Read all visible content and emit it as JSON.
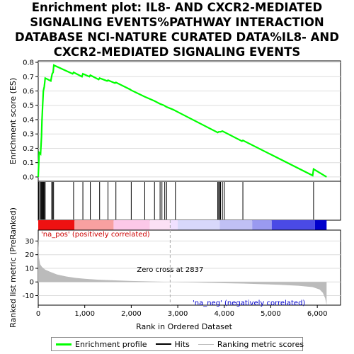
{
  "title_lines": [
    "Enrichment plot: IL8- AND CXCR2-MEDIATED",
    "SIGNALING EVENTS%PATHWAY INTERACTION",
    "DATABASE NCI-NATURE CURATED DATA%IL8- AND",
    "CXCR2-MEDIATED SIGNALING EVENTS"
  ],
  "legend": {
    "items": [
      {
        "label": "Enrichment profile",
        "color": "#00ff00"
      },
      {
        "label": "Hits",
        "color": "#000000"
      },
      {
        "label": "Ranking metric scores",
        "color": "#bbbbbb"
      }
    ]
  },
  "colors": {
    "es_line": "#00ff00",
    "hits": "#000000",
    "metric_fill": "#bbbbbb",
    "pos_text": "#cc0000",
    "neg_text": "#0000cc",
    "zero_line": "#aaaaaa"
  },
  "annotations": {
    "pos_label": "'na_pos' (positively correlated)",
    "neg_label": "'na_neg' (negatively correlated)",
    "zero_cross": "Zero cross at 2837"
  },
  "chart_data": {
    "type": "line",
    "xlabel": "Rank in Ordered Dataset",
    "x_range": [
      0,
      6500
    ],
    "x_ticks": [
      0,
      1000,
      2000,
      3000,
      4000,
      5000,
      6000
    ],
    "x_tick_labels": [
      "0",
      "1,000",
      "2,000",
      "3,000",
      "4,000",
      "5,000",
      "6,000"
    ],
    "total_genes": 6200,
    "zero_cross": 2837,
    "es_panel": {
      "ylabel": "Enrichment score (ES)",
      "ylim": [
        -0.03,
        0.81
      ],
      "y_ticks": [
        0.0,
        0.1,
        0.2,
        0.3,
        0.4,
        0.5,
        0.6,
        0.7,
        0.8
      ],
      "y_tick_labels": [
        "0.0",
        "0.1",
        "0.2",
        "0.3",
        "0.4",
        "0.5",
        "0.6",
        "0.7",
        "0.8"
      ],
      "points": [
        [
          0,
          0.0
        ],
        [
          20,
          0.17
        ],
        [
          50,
          0.16
        ],
        [
          70,
          0.28
        ],
        [
          80,
          0.39
        ],
        [
          95,
          0.5
        ],
        [
          110,
          0.6
        ],
        [
          130,
          0.63
        ],
        [
          150,
          0.69
        ],
        [
          270,
          0.67
        ],
        [
          300,
          0.72
        ],
        [
          320,
          0.73
        ],
        [
          335,
          0.78
        ],
        [
          740,
          0.72
        ],
        [
          760,
          0.73
        ],
        [
          940,
          0.7
        ],
        [
          960,
          0.72
        ],
        [
          1100,
          0.7
        ],
        [
          1120,
          0.71
        ],
        [
          1300,
          0.68
        ],
        [
          1320,
          0.69
        ],
        [
          1480,
          0.67
        ],
        [
          1500,
          0.675
        ],
        [
          1650,
          0.655
        ],
        [
          1670,
          0.66
        ],
        [
          1980,
          0.61
        ],
        [
          2000,
          0.605
        ],
        [
          2290,
          0.56
        ],
        [
          2500,
          0.53
        ],
        [
          2620,
          0.51
        ],
        [
          2700,
          0.5
        ],
        [
          2750,
          0.49
        ],
        [
          2900,
          0.47
        ],
        [
          3860,
          0.31
        ],
        [
          3880,
          0.315
        ],
        [
          3920,
          0.315
        ],
        [
          3960,
          0.32
        ],
        [
          4380,
          0.25
        ],
        [
          4400,
          0.255
        ],
        [
          5900,
          0.01
        ],
        [
          5920,
          0.055
        ],
        [
          6200,
          0.0
        ]
      ]
    },
    "hits": [
      8,
      30,
      55,
      70,
      85,
      100,
      115,
      130,
      150,
      290,
      310,
      330,
      760,
      960,
      1120,
      1320,
      1500,
      1670,
      2000,
      2290,
      2500,
      2620,
      2660,
      2720,
      2760,
      2950,
      3860,
      3880,
      3900,
      3920,
      3960,
      4000,
      4400,
      5920
    ],
    "metric_panel": {
      "ylabel": "Ranked list metric (PreRanked)",
      "ylim": [
        -17,
        38
      ],
      "y_ticks": [
        -10,
        0,
        10,
        20,
        30
      ],
      "y_tick_labels": [
        "-10",
        "0",
        "10",
        "20",
        "30"
      ],
      "points": [
        [
          0,
          32
        ],
        [
          15,
          18
        ],
        [
          40,
          13
        ],
        [
          80,
          11
        ],
        [
          150,
          9
        ],
        [
          250,
          7.5
        ],
        [
          400,
          5.5
        ],
        [
          600,
          4
        ],
        [
          800,
          3
        ],
        [
          1000,
          2.3
        ],
        [
          1300,
          1.6
        ],
        [
          1600,
          1.2
        ],
        [
          2000,
          0.7
        ],
        [
          2400,
          0.35
        ],
        [
          2837,
          0
        ],
        [
          3200,
          -0.3
        ],
        [
          3600,
          -0.6
        ],
        [
          4000,
          -0.9
        ],
        [
          4400,
          -1.2
        ],
        [
          4800,
          -1.6
        ],
        [
          5200,
          -2.1
        ],
        [
          5600,
          -2.8
        ],
        [
          5900,
          -3.8
        ],
        [
          6050,
          -5.5
        ],
        [
          6120,
          -8
        ],
        [
          6170,
          -12
        ],
        [
          6200,
          -17
        ]
      ]
    },
    "rank_bar_colors": [
      {
        "start": 0,
        "end": 780,
        "color": "#ee1111"
      },
      {
        "start": 780,
        "end": 1620,
        "color": "#f8a0a0"
      },
      {
        "start": 1620,
        "end": 2400,
        "color": "#fcc8e8"
      },
      {
        "start": 2400,
        "end": 2837,
        "color": "#fbe0f4"
      },
      {
        "start": 2837,
        "end": 3000,
        "color": "#f0e0ff"
      },
      {
        "start": 3000,
        "end": 3900,
        "color": "#d8d8fa"
      },
      {
        "start": 3900,
        "end": 4600,
        "color": "#c0c0f4"
      },
      {
        "start": 4600,
        "end": 5020,
        "color": "#9a9af0"
      },
      {
        "start": 5020,
        "end": 5950,
        "color": "#4a4ae6"
      },
      {
        "start": 5950,
        "end": 6200,
        "color": "#0000cc"
      }
    ]
  }
}
